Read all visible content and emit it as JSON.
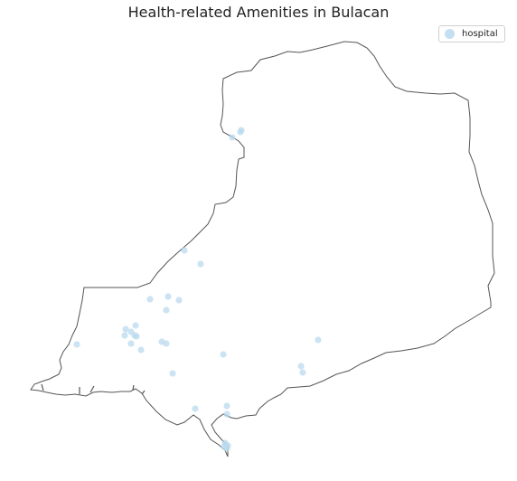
{
  "title": "Health-related Amenities in Bulacan",
  "legend": {
    "label": "hospital",
    "marker_color": "#b9d9ee"
  },
  "map_style": {
    "boundary_color": "#555555",
    "background": "#ffffff"
  },
  "chart_data": {
    "type": "scatter",
    "title": "Health-related Amenities in Bulacan",
    "series": [
      {
        "name": "hospital",
        "count": 33
      }
    ],
    "grid": false,
    "axes": "off",
    "legend_position": "top-right"
  }
}
